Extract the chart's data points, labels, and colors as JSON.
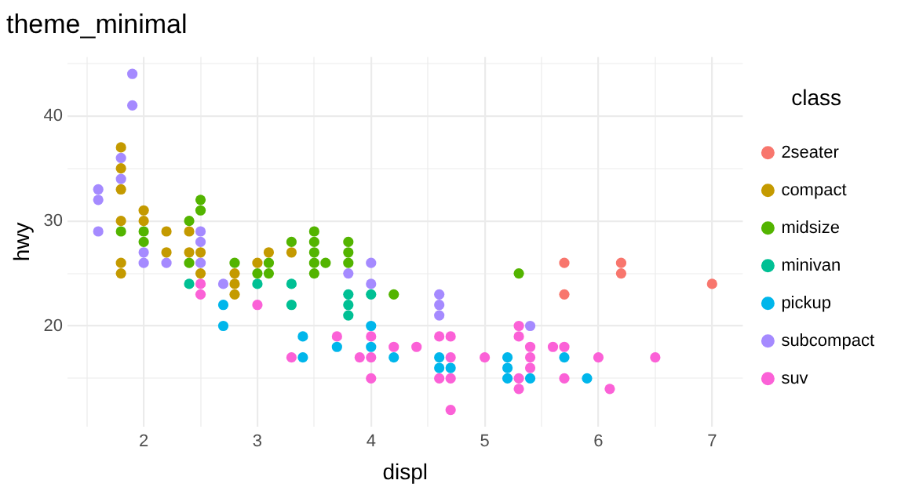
{
  "chart_data": {
    "type": "scatter",
    "title": "theme_minimal",
    "xlabel": "displ",
    "ylabel": "hwy",
    "legend_title": "class",
    "legend": "right",
    "grid": true,
    "marker": "circle",
    "xlim": [
      1.33,
      7.27
    ],
    "ylim": [
      10.4,
      45.6
    ],
    "xticks": [
      {
        "value": 1.5,
        "label": null
      },
      2,
      {
        "value": 2.5,
        "label": null
      },
      3,
      {
        "value": 3.5,
        "label": null
      },
      4,
      {
        "value": 4.5,
        "label": null
      },
      5,
      {
        "value": 5.5,
        "label": null
      },
      6,
      {
        "value": 6.5,
        "label": null
      },
      7
    ],
    "yticks": [
      {
        "value": 15,
        "label": null
      },
      20,
      {
        "value": 25,
        "label": null
      },
      30,
      {
        "value": 35,
        "label": null
      },
      40,
      {
        "value": 45,
        "label": null
      }
    ],
    "series": [
      {
        "name": "2seater",
        "color": "#f8766d",
        "x": [
          5.7,
          6.2,
          6.2,
          5.7,
          7.0
        ],
        "values": [
          26,
          26,
          25,
          23,
          24
        ]
      },
      {
        "name": "compact",
        "color": "#c49a00",
        "x": [
          1.8,
          1.8,
          1.8,
          1.8,
          1.8,
          1.8,
          2.0,
          2.0,
          2.2,
          2.4,
          2.2,
          2.4,
          2.5,
          2.5,
          2.8,
          2.8,
          2.8,
          3.0,
          3.1,
          3.3
        ],
        "values": [
          37,
          35,
          33,
          30,
          26,
          25,
          31,
          30,
          29,
          29,
          27,
          27,
          27,
          25,
          25,
          24,
          23,
          26,
          27,
          27
        ]
      },
      {
        "name": "midsize",
        "color": "#53b400",
        "x": [
          1.8,
          2.0,
          2.0,
          2.4,
          2.5,
          2.5,
          3.5,
          2.4,
          2.8,
          3.0,
          3.1,
          3.1,
          3.3,
          3.5,
          3.5,
          3.5,
          3.5,
          3.6,
          3.8,
          3.8,
          3.8,
          4.2,
          5.3
        ],
        "values": [
          29,
          29,
          28,
          30,
          32,
          31,
          29,
          26,
          26,
          25,
          26,
          25,
          28,
          28,
          27,
          26,
          25,
          26,
          28,
          27,
          26,
          23,
          25
        ]
      },
      {
        "name": "minivan",
        "color": "#00c094",
        "x": [
          2.4,
          3.0,
          3.3,
          3.3,
          3.8,
          3.8,
          3.8,
          4.0
        ],
        "values": [
          24,
          24,
          24,
          22,
          23,
          22,
          21,
          23
        ]
      },
      {
        "name": "pickup",
        "color": "#00b6eb",
        "x": [
          2.7,
          2.7,
          3.4,
          3.4,
          3.7,
          4.0,
          4.0,
          4.2,
          4.6,
          4.6,
          4.7,
          5.2,
          5.2,
          5.2,
          5.4,
          5.7,
          5.9
        ],
        "values": [
          22,
          20,
          19,
          17,
          18,
          20,
          18,
          17,
          17,
          16,
          16,
          17,
          16,
          15,
          15,
          17,
          15
        ]
      },
      {
        "name": "subcompact",
        "color": "#a58aff",
        "x": [
          1.9,
          1.9,
          1.8,
          1.8,
          1.6,
          1.6,
          1.6,
          2.0,
          2.2,
          2.5,
          2.5,
          2.0,
          2.5,
          2.7,
          3.8,
          4.0,
          4.0,
          4.6,
          4.6,
          4.6,
          5.4
        ],
        "values": [
          44,
          41,
          36,
          34,
          33,
          32,
          29,
          27,
          26,
          29,
          28,
          26,
          26,
          24,
          25,
          26,
          24,
          23,
          22,
          21,
          20
        ]
      },
      {
        "name": "suv",
        "color": "#fb61d7",
        "x": [
          2.5,
          2.5,
          3.0,
          3.3,
          3.7,
          3.9,
          4.0,
          4.0,
          4.0,
          4.2,
          4.4,
          4.6,
          4.7,
          4.7,
          4.6,
          4.7,
          4.7,
          5.0,
          5.3,
          5.3,
          5.4,
          5.4,
          5.4,
          5.3,
          5.3,
          5.6,
          5.7,
          5.7,
          6.0,
          6.1,
          6.5
        ],
        "values": [
          24,
          23,
          22,
          17,
          19,
          17,
          19,
          17,
          15,
          18,
          18,
          19,
          19,
          17,
          15,
          15,
          12,
          17,
          20,
          19,
          18,
          17,
          16,
          15,
          14,
          18,
          18,
          15,
          17,
          14,
          17
        ]
      }
    ]
  }
}
